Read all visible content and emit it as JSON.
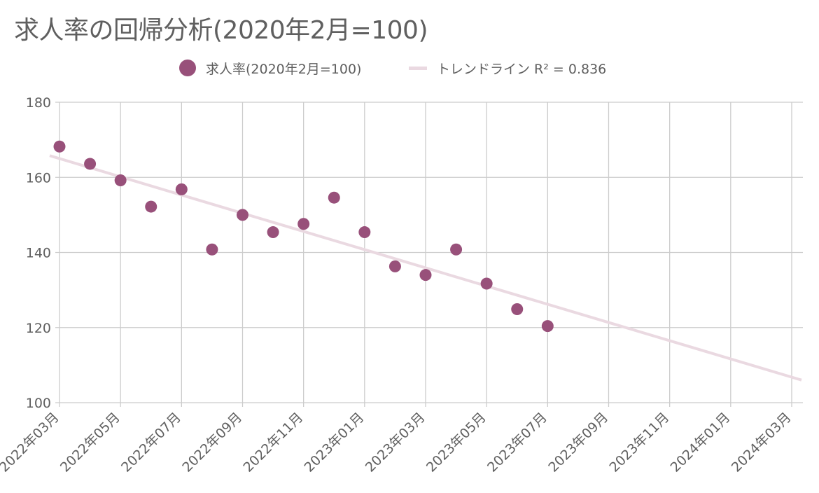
{
  "title": "求人率の回帰分析(2020年2月=100)",
  "legend": {
    "series_label": "求人率(2020年2月=100)",
    "trend_label": "トレンドライン R² = 0.836"
  },
  "colors": {
    "point": "#98507a",
    "trend": "#ead9e1",
    "grid": "#cccccc",
    "text": "#5f5f5f"
  },
  "chart_data": {
    "type": "scatter",
    "title": "求人率の回帰分析(2020年2月=100)",
    "xlabel": "",
    "ylabel": "",
    "x_tick_labels": [
      "2022年03月",
      "2022年05月",
      "2022年07月",
      "2022年09月",
      "2022年11月",
      "2023年01月",
      "2023年03月",
      "2023年05月",
      "2023年07月",
      "2023年09月",
      "2023年11月",
      "2024年01月",
      "2024年03月"
    ],
    "y_ticks": [
      100,
      120,
      140,
      160,
      180
    ],
    "ylim": [
      100,
      180
    ],
    "xlim": [
      "2022-03",
      "2024-03"
    ],
    "grid": true,
    "legend_position": "top",
    "series": [
      {
        "name": "求人率(2020年2月=100)",
        "x": [
          "2022-03",
          "2022-04",
          "2022-05",
          "2022-06",
          "2022-07",
          "2022-08",
          "2022-09",
          "2022-10",
          "2022-11",
          "2022-12",
          "2023-01",
          "2023-02",
          "2023-03",
          "2023-04",
          "2023-05",
          "2023-06",
          "2023-07"
        ],
        "y": [
          168.2,
          163.6,
          159.2,
          152.2,
          156.8,
          140.8,
          150.0,
          145.4,
          147.6,
          154.6,
          145.4,
          136.3,
          134.0,
          140.8,
          131.7,
          124.9,
          120.4
        ]
      }
    ],
    "trendline": {
      "name": "トレンドライン R² = 0.836",
      "r_squared": 0.836,
      "x": [
        "2022-03",
        "2024-03"
      ],
      "y": [
        165.0,
        106.8
      ]
    }
  }
}
